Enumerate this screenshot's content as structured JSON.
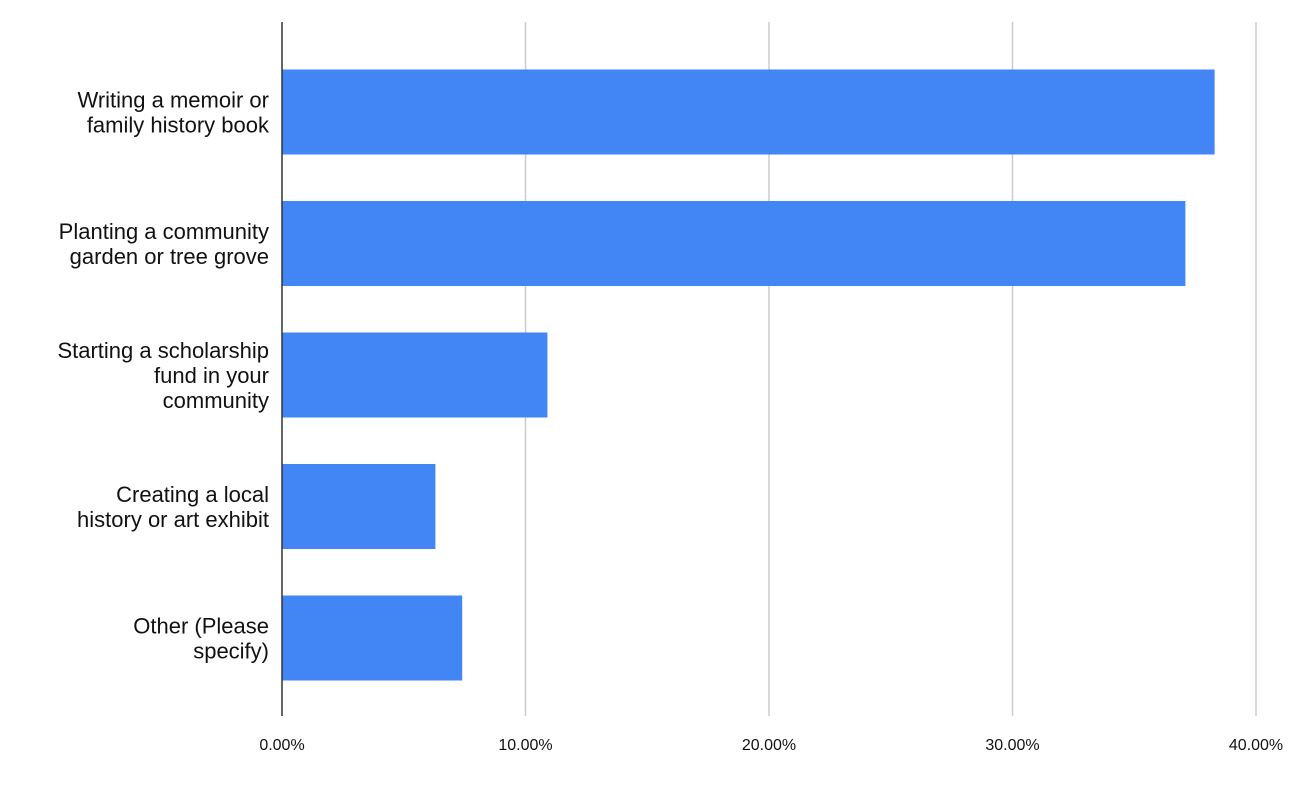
{
  "chart_data": {
    "type": "bar",
    "orientation": "horizontal",
    "categories": [
      [
        "Writing a memoir or",
        "family history book"
      ],
      [
        "Planting a community",
        "garden or tree grove"
      ],
      [
        "Starting a scholarship",
        "fund in your",
        "community"
      ],
      [
        "Creating a local",
        "history or art exhibit"
      ],
      [
        "Other (Please",
        "specify)"
      ]
    ],
    "values": [
      38.3,
      37.1,
      10.9,
      6.3,
      7.4
    ],
    "xlim": [
      0,
      40
    ],
    "xticks": [
      "0.00%",
      "10.00%",
      "20.00%",
      "30.00%",
      "40.00%"
    ],
    "bar_color": "#4285f4",
    "grid": true,
    "legend": "none"
  }
}
